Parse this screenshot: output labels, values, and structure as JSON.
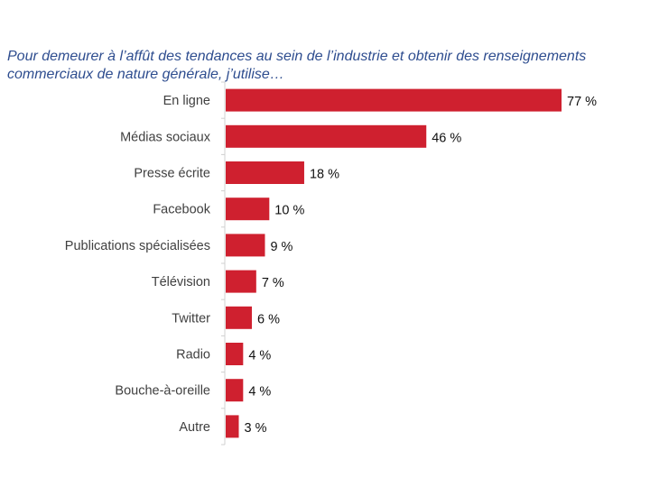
{
  "chart_data": {
    "type": "bar",
    "orientation": "horizontal",
    "title": "Pour demeurer à l’affût des tendances au sein de l’industrie et obtenir des renseignements commerciaux de nature générale, j’utilise…",
    "categories": [
      "En ligne",
      "Médias sociaux",
      "Presse écrite",
      "Facebook",
      "Publications spécialisées",
      "Télévision",
      "Twitter",
      "Radio",
      "Bouche-à-oreille",
      "Autre"
    ],
    "values": [
      77,
      46,
      18,
      10,
      9,
      7,
      6,
      4,
      4,
      3
    ],
    "value_labels": [
      "77 %",
      "46 %",
      "18 %",
      "10 %",
      "9 %",
      "7 %",
      "6 %",
      "4 %",
      "4 %",
      "3 %"
    ],
    "xlabel": "",
    "ylabel": "",
    "xlim": [
      0,
      80
    ],
    "grid": false,
    "legend": "none",
    "colors": {
      "bar": "#cf202f",
      "title": "#2e4d8f"
    }
  }
}
